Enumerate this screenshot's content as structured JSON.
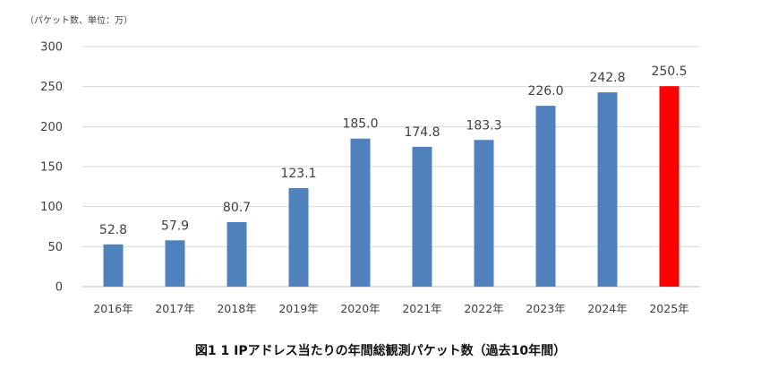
{
  "chart_data": {
    "type": "bar",
    "unit_label": "（パケット数、単位：万）",
    "categories": [
      "2016年",
      "2017年",
      "2018年",
      "2019年",
      "2020年",
      "2021年",
      "2022年",
      "2023年",
      "2024年",
      "2025年"
    ],
    "values": [
      52.8,
      57.9,
      80.7,
      123.1,
      185.0,
      174.8,
      183.3,
      226.0,
      242.8,
      250.5
    ],
    "value_labels": [
      "52.8",
      "57.9",
      "80.7",
      "123.1",
      "185.0",
      "174.8",
      "183.3",
      "226.0",
      "242.8",
      "250.5"
    ],
    "y_ticks": [
      "0",
      "50",
      "100",
      "150",
      "200",
      "250",
      "300"
    ],
    "ylim": [
      0,
      300
    ],
    "grid": true,
    "legend": "none",
    "colors": {
      "default_bar": "#4f81bd",
      "highlight_bar": "#ff0000",
      "highlight_index": 9
    },
    "caption": "図1 1 IPアドレス当たりの年間総観測パケット数（過去10年間）"
  }
}
